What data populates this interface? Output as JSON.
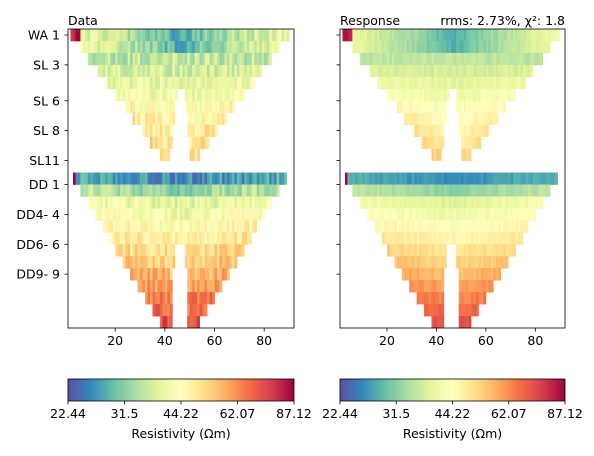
{
  "chart_data": [
    {
      "type": "heatmap",
      "panel": "data",
      "title": "Data",
      "title_right": "",
      "xlim": [
        1,
        92
      ],
      "xticks": [
        20,
        40,
        60,
        80
      ],
      "yticklabels": [
        "WA 1",
        "SL 3",
        "SL 6",
        "SL 8",
        "SL11",
        "DD 1",
        "DD4- 4",
        "DD6- 6",
        "DD9- 9"
      ],
      "yaxis_visible": true,
      "colorscale": "Spectral_r (log)",
      "clim": [
        22.44,
        87.12
      ],
      "colorbar": {
        "ticks": [
          "22.44",
          "31.5",
          "44.22",
          "62.07",
          "87.12"
        ],
        "label": "Resistivity (Ωm)"
      }
    },
    {
      "type": "heatmap",
      "panel": "response",
      "title": "Response",
      "title_right": "rrms: 2.73%, χ²: 1.8",
      "xlim": [
        1,
        92
      ],
      "xticks": [
        20,
        40,
        60,
        80
      ],
      "yticklabels": [],
      "yaxis_visible": false,
      "colorscale": "Spectral_r (log)",
      "clim": [
        22.44,
        87.12
      ],
      "colorbar": {
        "ticks": [
          "22.44",
          "31.5",
          "44.22",
          "62.07",
          "87.12"
        ],
        "label": "Resistivity (Ωm)"
      }
    }
  ]
}
